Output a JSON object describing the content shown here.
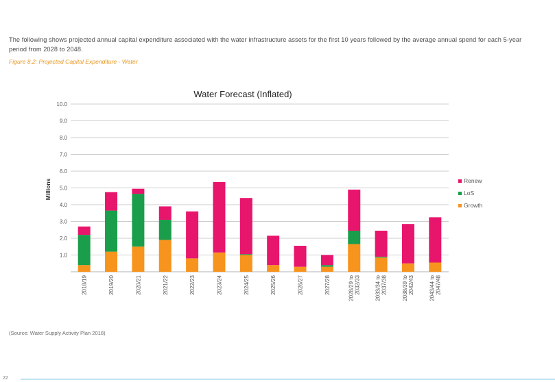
{
  "intro_text": "The following shows projected annual capital expenditure associated with the water infrastructure assets for the first 10 years followed by the average annual spend for each 5-year period from 2028 to 2048.",
  "figure_caption": "Figure 8.2:  Projected Capital Expenditure - Water",
  "source_note": "(Source:  Water Supply Activity Plan 2018)",
  "page_number": "22",
  "colors": {
    "Renew": "#e8156d",
    "LoS": "#1a9e4b",
    "Growth": "#f7941d"
  },
  "chart_data": {
    "type": "bar",
    "stacked": true,
    "title": "Water Forecast (Inflated)",
    "xlabel": "",
    "ylabel": "Millions",
    "ylim": [
      0,
      10
    ],
    "yticks": [
      "",
      "1.0",
      "2.0",
      "3.0",
      "4.0",
      "5.0",
      "6.0",
      "7.0",
      "8.0",
      "9.0",
      "10.0"
    ],
    "grid": true,
    "legend_position": "right",
    "categories": [
      "2018/19",
      "2019/20",
      "2020/21",
      "2021/22",
      "2022/23",
      "2023/24",
      "2024/25",
      "2025/26",
      "2026/27",
      "2027/28",
      "2028/29 to 2032/33",
      "2033/34 to 2037/38",
      "2038/39 to 2042/43",
      "2043/44 to 2047/48"
    ],
    "series": [
      {
        "name": "Growth",
        "values": [
          0.4,
          1.2,
          1.5,
          1.9,
          0.8,
          1.15,
          1.0,
          0.4,
          0.3,
          0.3,
          1.65,
          0.85,
          0.5,
          0.55
        ]
      },
      {
        "name": "LoS",
        "values": [
          1.8,
          2.45,
          3.15,
          1.2,
          0.0,
          0.0,
          0.05,
          0.0,
          0.0,
          0.1,
          0.8,
          0.05,
          0.0,
          0.0
        ]
      },
      {
        "name": "Renew",
        "values": [
          0.5,
          1.1,
          0.3,
          0.8,
          2.8,
          4.2,
          3.35,
          1.75,
          1.25,
          0.6,
          2.45,
          1.55,
          2.35,
          2.7
        ]
      }
    ],
    "legend_order": [
      "Renew",
      "LoS",
      "Growth"
    ]
  }
}
